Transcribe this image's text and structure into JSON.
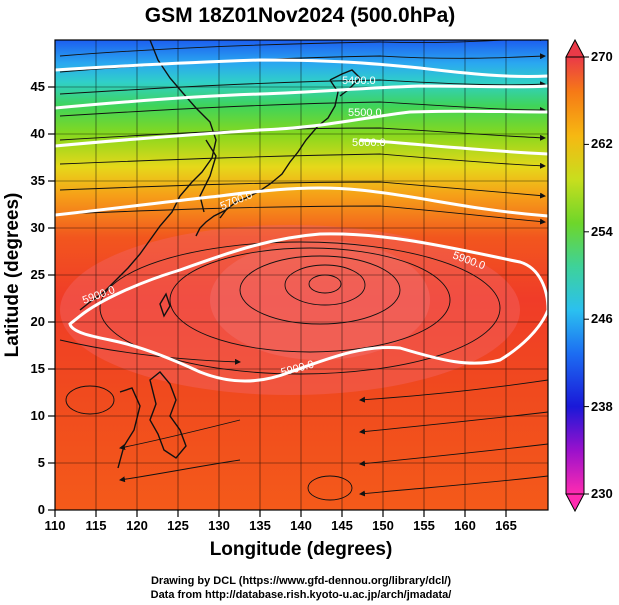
{
  "title": "GSM 18Z01Nov2024 (500.0hPa)",
  "xlabel": "Longitude (degrees)",
  "ylabel": "Latitude  (degrees)",
  "footer": {
    "line1": "Drawing by DCL (https://www.gfd-dennou.org/library/dcl/)",
    "line2": "Data from http://database.rish.kyoto-u.ac.jp/arch/jmadata/"
  },
  "map": {
    "lon_range": [
      110,
      170
    ],
    "lat_range": [
      0,
      50
    ],
    "lon_ticks": [
      110,
      115,
      120,
      125,
      130,
      135,
      140,
      145,
      150,
      155,
      160,
      165
    ],
    "lat_ticks": [
      0,
      5,
      10,
      15,
      20,
      25,
      30,
      35,
      40,
      45
    ],
    "contour_labels": [
      "5900.0",
      "5900.0",
      "5900.0",
      "5700.0",
      "5600.0",
      "5500.0",
      "5400.0"
    ]
  },
  "colorbar": {
    "ticks": [
      "230",
      "238",
      "246",
      "254",
      "262",
      "270"
    ],
    "colors": [
      "#ff2bb0",
      "#9a11cc",
      "#1a18d8",
      "#1c6cf2",
      "#2bc0f0",
      "#3ed29a",
      "#6ed62a",
      "#c8de1e",
      "#f6b812",
      "#f67a16",
      "#f24a22",
      "#ea3a48"
    ]
  }
}
